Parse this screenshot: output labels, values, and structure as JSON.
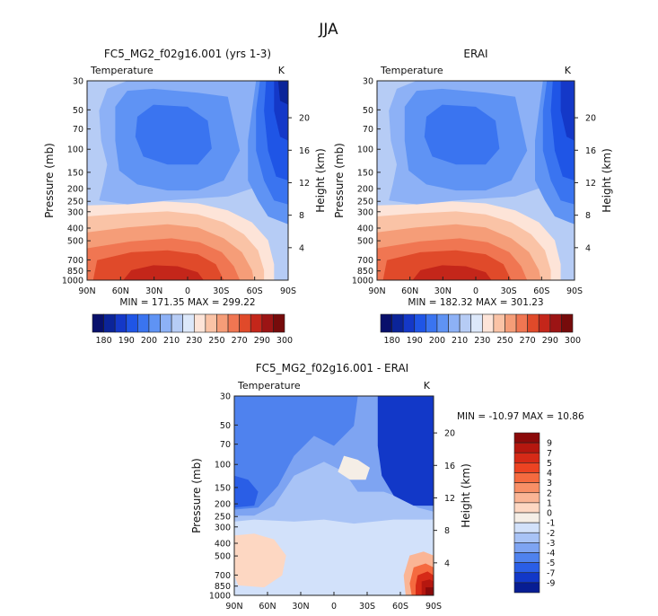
{
  "figure": {
    "title": "JJA"
  },
  "chart_data": [
    {
      "type": "heatmap",
      "title": "FC5_MG2_f02g16.001 (yrs 1-3)",
      "subtitle": "Temperature",
      "units": "K",
      "ylabel": "Pressure (mb)",
      "ylabel_right": "Height (km)",
      "x_ticks": [
        "90N",
        "60N",
        "30N",
        "0",
        "30S",
        "60S",
        "90S"
      ],
      "y_ticks": [
        "30",
        "50",
        "70",
        "100",
        "150",
        "200",
        "250",
        "300",
        "400",
        "500",
        "700",
        "850",
        "1000"
      ],
      "height_ticks": [
        "4",
        "8",
        "12",
        "16",
        "20"
      ],
      "stats": "MIN = 171.35   MAX = 299.22",
      "colorbar": {
        "labels": [
          "180",
          "190",
          "200",
          "210",
          "230",
          "250",
          "270",
          "290",
          "300"
        ],
        "colors": [
          "#08106b",
          "#0b2499",
          "#1438c8",
          "#1f55e6",
          "#3a74f0",
          "#5f93f4",
          "#8db1f6",
          "#b6ccf5",
          "#dce8fa",
          "#fde4d8",
          "#fac3a6",
          "#f59d78",
          "#f07652",
          "#e04a2a",
          "#c4261a",
          "#9c1414",
          "#760b0b"
        ]
      },
      "layers": [
        {
          "name": "warm-t1",
          "level": "250 K",
          "color": "#fde4d8"
        },
        {
          "name": "warm-t2",
          "level": "265 K",
          "color": "#fac3a6"
        },
        {
          "name": "warm-t3",
          "level": "275 K",
          "color": "#f59d78"
        },
        {
          "name": "warm-t4",
          "level": "285 K",
          "color": "#f07652"
        },
        {
          "name": "warm-t5",
          "level": "292 K",
          "color": "#e04a2a"
        },
        {
          "name": "warm-t6",
          "level": "297 K",
          "color": "#c4261a"
        },
        {
          "name": "upper-cold-1",
          "level": "215 K",
          "color": "#8db1f6"
        },
        {
          "name": "upper-cold-2",
          "level": "205 K",
          "color": "#5f93f4"
        },
        {
          "name": "upper-cold-3",
          "level": "198 K",
          "color": "#3a74f0"
        },
        {
          "name": "polar-cold-1",
          "level": "205 K",
          "color": "#5f93f4"
        },
        {
          "name": "polar-cold-2",
          "level": "195 K",
          "color": "#3a74f0"
        },
        {
          "name": "polar-cold-3",
          "level": "188 K",
          "color": "#1f55e6"
        },
        {
          "name": "polar-cold-4",
          "level": "180 K",
          "color": "#1438c8"
        },
        {
          "name": "polar-cold-5",
          "level": "172 K",
          "color": "#0b2499"
        }
      ]
    },
    {
      "type": "heatmap",
      "title": "ERAI",
      "subtitle": "Temperature",
      "units": "K",
      "ylabel": "Pressure (mb)",
      "ylabel_right": "Height (km)",
      "x_ticks": [
        "90N",
        "60N",
        "30N",
        "0",
        "30S",
        "60S",
        "90S"
      ],
      "y_ticks": [
        "30",
        "50",
        "70",
        "100",
        "150",
        "200",
        "250",
        "300",
        "400",
        "500",
        "700",
        "850",
        "1000"
      ],
      "height_ticks": [
        "4",
        "8",
        "12",
        "16",
        "20"
      ],
      "stats": "MIN = 182.32   MAX = 301.23",
      "colorbar": {
        "labels": [
          "180",
          "190",
          "200",
          "210",
          "230",
          "250",
          "270",
          "290",
          "300"
        ],
        "colors": [
          "#08106b",
          "#0b2499",
          "#1438c8",
          "#1f55e6",
          "#3a74f0",
          "#5f93f4",
          "#8db1f6",
          "#b6ccf5",
          "#dce8fa",
          "#fde4d8",
          "#fac3a6",
          "#f59d78",
          "#f07652",
          "#e04a2a",
          "#c4261a",
          "#9c1414",
          "#760b0b"
        ]
      },
      "layers": [
        {
          "name": "warm-t1",
          "level": "250 K",
          "color": "#fde4d8"
        },
        {
          "name": "warm-t2",
          "level": "265 K",
          "color": "#fac3a6"
        },
        {
          "name": "warm-t3",
          "level": "275 K",
          "color": "#f59d78"
        },
        {
          "name": "warm-t4",
          "level": "285 K",
          "color": "#f07652"
        },
        {
          "name": "warm-t5",
          "level": "292 K",
          "color": "#e04a2a"
        },
        {
          "name": "warm-t6",
          "level": "297 K",
          "color": "#c4261a"
        },
        {
          "name": "upper-cold-1",
          "level": "215 K",
          "color": "#8db1f6"
        },
        {
          "name": "upper-cold-2",
          "level": "205 K",
          "color": "#5f93f4"
        },
        {
          "name": "upper-cold-3",
          "level": "198 K",
          "color": "#3a74f0"
        },
        {
          "name": "polar-cold-1",
          "level": "205 K",
          "color": "#5f93f4"
        },
        {
          "name": "polar-cold-2",
          "level": "195 K",
          "color": "#3a74f0"
        },
        {
          "name": "polar-cold-3",
          "level": "188 K",
          "color": "#1f55e6"
        },
        {
          "name": "polar-cold-4",
          "level": "183 K",
          "color": "#1438c8"
        }
      ]
    },
    {
      "type": "heatmap",
      "title": "FC5_MG2_f02g16.001 - ERAI",
      "subtitle": "Temperature",
      "units": "K",
      "ylabel": "Pressure (mb)",
      "ylabel_right": "Height (km)",
      "x_ticks": [
        "90N",
        "60N",
        "30N",
        "0",
        "30S",
        "60S",
        "90S"
      ],
      "y_ticks": [
        "30",
        "50",
        "70",
        "100",
        "150",
        "200",
        "250",
        "300",
        "400",
        "500",
        "700",
        "850",
        "1000"
      ],
      "height_ticks": [
        "4",
        "8",
        "12",
        "16",
        "20"
      ],
      "stats": "MIN = -10.97   MAX =  10.86",
      "colorbar": {
        "labels": [
          "9",
          "7",
          "5",
          "4",
          "3",
          "2",
          "1",
          "0",
          "-1",
          "-2",
          "-3",
          "-4",
          "-5",
          "-7",
          "-9"
        ],
        "colors": [
          "#8b0a0a",
          "#b5170f",
          "#d62a17",
          "#ec4322",
          "#f56a3f",
          "#f88f66",
          "#fab595",
          "#fdd7c2",
          "#f5eee6",
          "#d2e1fa",
          "#a8c3f6",
          "#7ea4f2",
          "#4f82ee",
          "#2a5ee6",
          "#1238c8",
          "#071d93"
        ]
      },
      "layers": [
        {
          "name": "diff-lower-weak",
          "level": "-1 K",
          "color": "#d2e1fa"
        },
        {
          "name": "diff-upper-1",
          "level": "-2 K",
          "color": "#a8c3f6"
        },
        {
          "name": "diff-upper-2",
          "level": "-3 K",
          "color": "#7ea4f2"
        },
        {
          "name": "diff-upper-3",
          "level": "-4 K",
          "color": "#4f82ee"
        },
        {
          "name": "diff-upper-4",
          "level": "-5 K",
          "color": "#2a5ee6"
        },
        {
          "name": "diff-upper-5",
          "level": "-7 K",
          "color": "#1238c8"
        },
        {
          "name": "diff-near-zero-1",
          "level": "0 K",
          "color": "#f5eee6"
        },
        {
          "name": "diff-near-zero-2",
          "level": "0 K",
          "color": "#fdd7c2"
        },
        {
          "name": "diff-warm-1",
          "level": "1 K",
          "color": "#fab595"
        },
        {
          "name": "diff-warm-2",
          "level": "3 K",
          "color": "#f56a3f"
        },
        {
          "name": "diff-warm-3",
          "level": "5 K",
          "color": "#d62a17"
        },
        {
          "name": "diff-warm-4",
          "level": "7 K",
          "color": "#b5170f"
        },
        {
          "name": "diff-warm-5",
          "level": "9 K",
          "color": "#8b0a0a"
        }
      ]
    }
  ]
}
